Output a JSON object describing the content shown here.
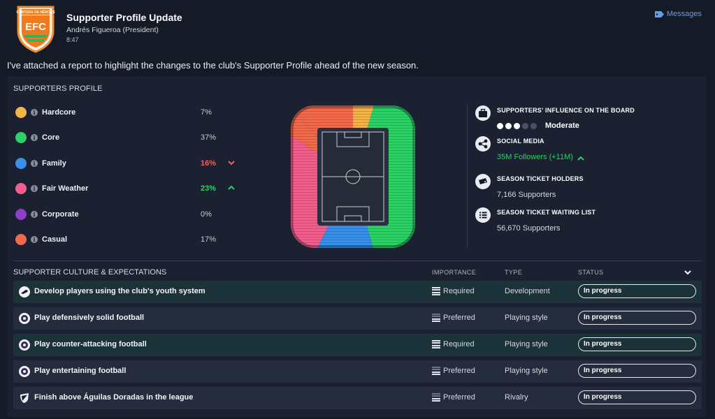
{
  "header": {
    "club_abbr": "EFC",
    "club_banner": "CANTERA DE HÉROES",
    "title": "Supporter Profile Update",
    "sender": "Andrés Figueroa  (President)",
    "time": "8:47",
    "messages_label": "Messages"
  },
  "intro": "I've attached a report to highlight the changes to the club's Supporter Profile ahead of the new season.",
  "supporters_profile": {
    "title": "SUPPORTERS PROFILE",
    "segments": [
      {
        "label": "Hardcore",
        "pct": "7%",
        "color": "#f2b44a",
        "trend": "none",
        "pct_color": "#c8ccd6"
      },
      {
        "label": "Core",
        "pct": "37%",
        "color": "#2ed067",
        "trend": "none",
        "pct_color": "#c8ccd6"
      },
      {
        "label": "Family",
        "pct": "16%",
        "color": "#3b8fe6",
        "trend": "down",
        "pct_color": "#f0605e"
      },
      {
        "label": "Fair Weather",
        "pct": "23%",
        "color": "#f0608e",
        "trend": "up",
        "pct_color": "#2ed067"
      },
      {
        "label": "Corporate",
        "pct": "0%",
        "color": "#8a3fc4",
        "trend": "none",
        "pct_color": "#c8ccd6"
      },
      {
        "label": "Casual",
        "pct": "17%",
        "color": "#f06a4e",
        "trend": "none",
        "pct_color": "#c8ccd6"
      }
    ]
  },
  "board": {
    "influence_title": "SUPPORTERS' INFLUENCE ON THE BOARD",
    "influence_level": "Moderate",
    "influence_dots_filled": 3,
    "influence_dots_total": 5,
    "social_title": "SOCIAL MEDIA",
    "social_value": "35M Followers (+11M)",
    "season_ticket_title": "SEASON TICKET HOLDERS",
    "season_ticket_value": "7,166 Supporters",
    "waiting_title": "SEASON TICKET WAITING LIST",
    "waiting_value": "56,670 Supporters"
  },
  "culture": {
    "title": "SUPPORTER CULTURE & EXPECTATIONS",
    "col_importance": "IMPORTANCE",
    "col_type": "TYPE",
    "col_status": "STATUS",
    "rows": [
      {
        "name": "Develop players using the club's youth system",
        "importance": "Required",
        "type": "Development",
        "status": "In progress",
        "icon": "boot-icon"
      },
      {
        "name": "Play defensively solid football",
        "importance": "Preferred",
        "type": "Playing style",
        "status": "In progress",
        "icon": "ball-icon"
      },
      {
        "name": "Play counter-attacking football",
        "importance": "Required",
        "type": "Playing style",
        "status": "In progress",
        "icon": "ball-icon"
      },
      {
        "name": "Play entertaining football",
        "importance": "Preferred",
        "type": "Playing style",
        "status": "In progress",
        "icon": "ball-icon"
      },
      {
        "name": "Finish above Águilas Doradas in the league",
        "importance": "Preferred",
        "type": "Rivalry",
        "status": "In progress",
        "icon": "shield-icon"
      }
    ]
  },
  "colors": {
    "required_row_bg": "#1a3238",
    "preferred_row_bg": "#252c3d",
    "accent_green": "#2ed067",
    "accent_red": "#f0605e",
    "link_blue": "#6d9be0"
  }
}
